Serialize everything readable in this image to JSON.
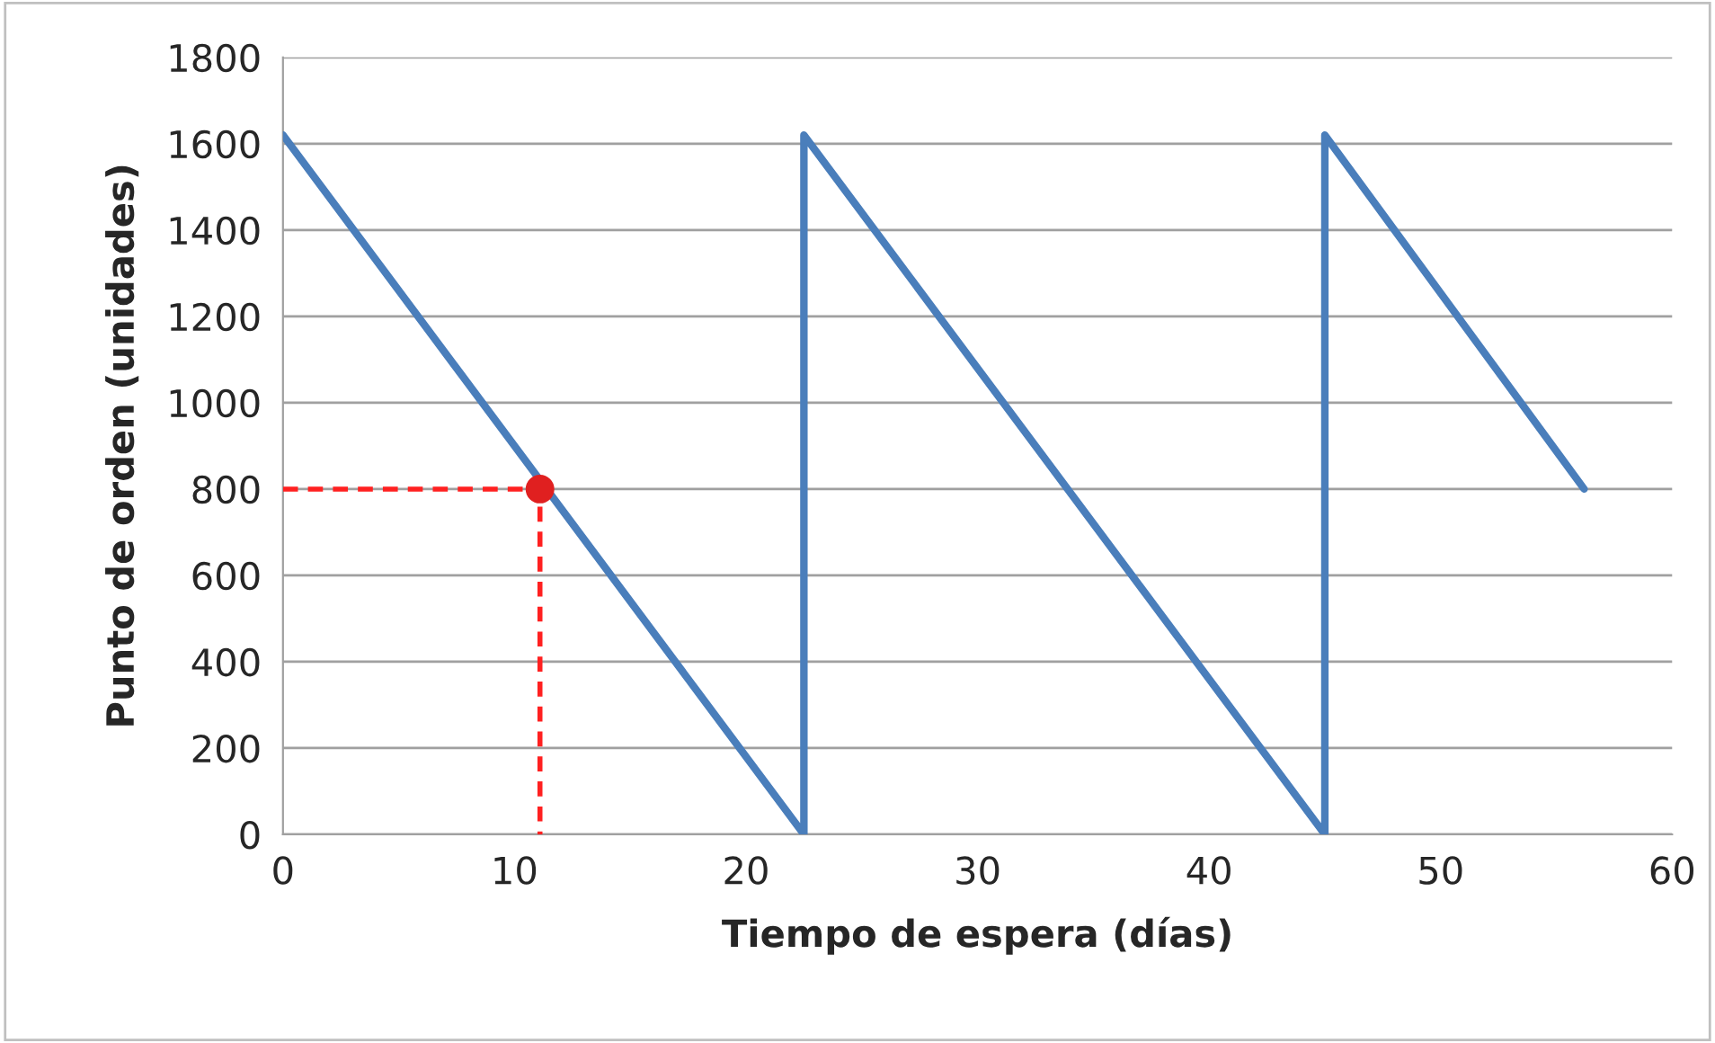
{
  "chart_data": {
    "type": "line",
    "xlabel": "Tiempo de espera (días)",
    "ylabel": "Punto de orden (unidades)",
    "xlim": [
      0,
      60
    ],
    "xticks": [
      0,
      10,
      20,
      30,
      40,
      50,
      60
    ],
    "ylim": [
      0,
      1800
    ],
    "yticks": [
      0,
      200,
      400,
      600,
      800,
      1000,
      1200,
      1400,
      1600,
      1800
    ],
    "grid": "y",
    "legend": false,
    "series": [
      {
        "color": "#4a7ebb",
        "x": [
          0,
          22.5,
          22.5,
          45,
          45,
          56.2
        ],
        "values": [
          1620,
          0,
          1620,
          0,
          1620,
          800
        ],
        "line_style": "solid",
        "marker": "none"
      },
      {
        "type": "line",
        "color": "#ff2020",
        "x": [
          0,
          11.1,
          11.1
        ],
        "values": [
          800,
          800,
          0
        ],
        "line_style": "dashed",
        "marker": "none"
      },
      {
        "type": "scatter",
        "color": "#e02020",
        "x": [
          11.1
        ],
        "values": [
          800
        ],
        "marker": "circle"
      }
    ]
  }
}
